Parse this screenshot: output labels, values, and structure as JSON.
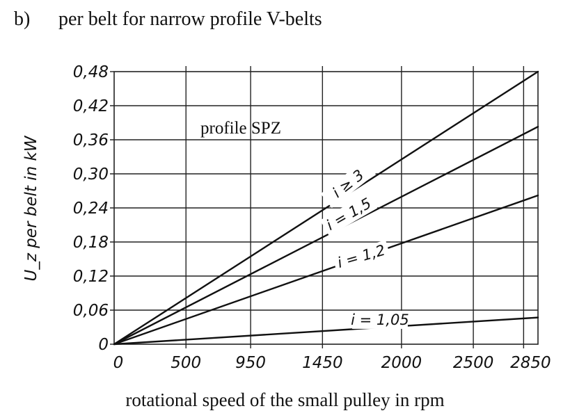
{
  "heading": {
    "tag": "b)",
    "text": "per belt for narrow profile V-belts"
  },
  "chart_data": {
    "type": "line",
    "title": "profile SPZ",
    "xlabel": "rotational speed of the small pulley in rpm",
    "ylabel": "U_z per belt in kW",
    "xlim": [
      0,
      2950
    ],
    "ylim": [
      0,
      0.48
    ],
    "x_ticks": [
      0,
      500,
      950,
      1450,
      2000,
      2500,
      2850
    ],
    "x_tick_labels": [
      "0",
      "500",
      "950",
      "1450",
      "2000",
      "2500",
      "2850"
    ],
    "y_ticks": [
      0,
      0.06,
      0.12,
      0.18,
      0.24,
      0.3,
      0.36,
      0.42,
      0.48
    ],
    "y_tick_labels": [
      "0",
      "0,06",
      "0,12",
      "0,18",
      "0,24",
      "0,30",
      "0,36",
      "0,42",
      "0,48"
    ],
    "grid": true,
    "series": [
      {
        "name": "i ≥ 3",
        "x": [
          0,
          2950
        ],
        "y": [
          0,
          0.48
        ]
      },
      {
        "name": "i = 1,5",
        "x": [
          0,
          2950
        ],
        "y": [
          0,
          0.383
        ]
      },
      {
        "name": "i = 1,2",
        "x": [
          0,
          2950
        ],
        "y": [
          0,
          0.262
        ]
      },
      {
        "name": "i = 1,05",
        "x": [
          0,
          2950
        ],
        "y": [
          0,
          0.047
        ]
      }
    ],
    "colors": {
      "line": "#111111",
      "grid": "#222222"
    }
  }
}
